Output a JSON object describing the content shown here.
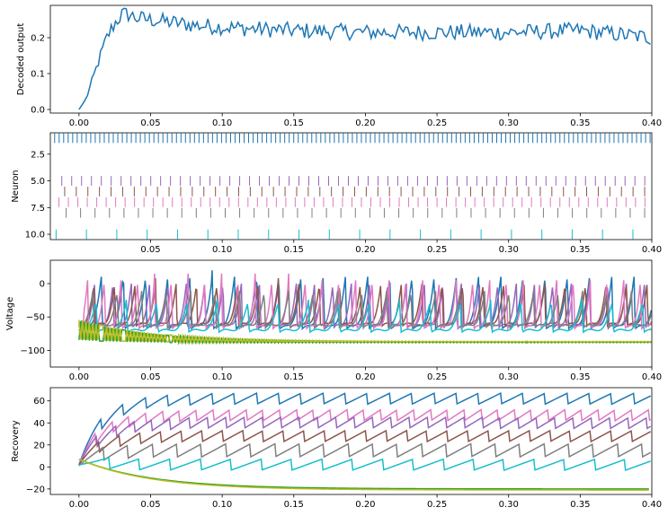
{
  "chart_data": [
    {
      "type": "line",
      "ylabel": "Decoded output",
      "xlim": [
        -0.02,
        0.4
      ],
      "ylim": [
        -0.01,
        0.29
      ],
      "xticks": [
        0.0,
        0.05,
        0.1,
        0.15,
        0.2,
        0.25,
        0.3,
        0.35,
        0.4
      ],
      "xtick_labels": [
        "0.00",
        "0.05",
        "0.10",
        "0.15",
        "0.20",
        "0.25",
        "0.30",
        "0.35",
        "0.40"
      ],
      "yticks": [
        0.0,
        0.1,
        0.2
      ],
      "ytick_labels": [
        "0.0",
        "0.1",
        "0.2"
      ],
      "series": [
        {
          "color": "#1f77b4",
          "x": [
            0.0,
            0.005,
            0.01,
            0.015,
            0.02,
            0.025,
            0.03,
            0.035,
            0.04,
            0.05,
            0.06,
            0.07,
            0.08,
            0.1,
            0.12,
            0.15,
            0.2,
            0.25,
            0.3,
            0.35,
            0.4
          ],
          "y": [
            0.0,
            0.03,
            0.09,
            0.15,
            0.205,
            0.24,
            0.265,
            0.265,
            0.255,
            0.25,
            0.245,
            0.24,
            0.235,
            0.23,
            0.225,
            0.22,
            0.215,
            0.215,
            0.215,
            0.22,
            0.2
          ]
        }
      ]
    },
    {
      "type": "scatter",
      "ylabel": "Neuron",
      "xlim": [
        -0.02,
        0.4
      ],
      "ylim": [
        10.5,
        0.5
      ],
      "xticks": [
        0.05,
        0.1,
        0.15,
        0.2,
        0.25,
        0.3,
        0.35,
        0.4
      ],
      "xtick_labels": [
        "0.05",
        "0.10",
        "0.15",
        "0.20",
        "0.25",
        "0.30",
        "0.35",
        "0.40"
      ],
      "yticks": [
        2.5,
        5.0,
        7.5,
        10.0
      ],
      "ytick_labels": [
        "2.5",
        "5.0",
        "7.5",
        "10.0"
      ],
      "series": [
        {
          "neuron": 1,
          "color": "#1f77b4",
          "start": -0.017,
          "period": 0.00315
        },
        {
          "neuron": 5,
          "color": "#9467bd",
          "start": -0.012,
          "period": 0.0069
        },
        {
          "neuron": 6,
          "color": "#8c564b",
          "start": -0.01,
          "period": 0.0081
        },
        {
          "neuron": 7,
          "color": "#e377c2",
          "start": -0.014,
          "period": 0.0066
        },
        {
          "neuron": 8,
          "color": "#7f7f7f",
          "start": -0.009,
          "period": 0.0101
        },
        {
          "neuron": 10,
          "color": "#17becf",
          "start": -0.016,
          "period": 0.0212
        }
      ]
    },
    {
      "type": "line",
      "ylabel": "Voltage",
      "xlim": [
        -0.02,
        0.4
      ],
      "ylim": [
        -125,
        35
      ],
      "xticks": [
        0.0,
        0.05,
        0.1,
        0.15,
        0.2,
        0.25,
        0.3,
        0.35,
        0.4
      ],
      "xtick_labels": [
        "0.00",
        "0.05",
        "0.10",
        "0.15",
        "0.20",
        "0.25",
        "0.30",
        "0.35",
        "0.40"
      ],
      "yticks": [
        0,
        -50,
        -100
      ],
      "ytick_labels": [
        "0",
        "−50",
        "−100"
      ],
      "series": [
        {
          "color": "#1f77b4",
          "kind": "spiking",
          "period": 0.0155,
          "peak": 20,
          "rest": -70
        },
        {
          "color": "#9467bd",
          "kind": "spiking",
          "period": 0.0128,
          "peak": 10,
          "rest": -68
        },
        {
          "color": "#8c564b",
          "kind": "spiking",
          "period": 0.0143,
          "peak": 8,
          "rest": -66
        },
        {
          "color": "#e377c2",
          "kind": "spiking",
          "period": 0.0117,
          "peak": 15,
          "rest": -70
        },
        {
          "color": "#7f7f7f",
          "kind": "spiking",
          "period": 0.0171,
          "peak": -5,
          "rest": -68
        },
        {
          "color": "#17becf",
          "kind": "spiking",
          "period": 0.0212,
          "peak": -20,
          "rest": -75
        },
        {
          "color": "#2ca02c",
          "kind": "oscillating",
          "settle": -88
        },
        {
          "color": "#bcbd22",
          "kind": "oscillating",
          "settle": -87
        }
      ]
    },
    {
      "type": "line",
      "ylabel": "Recovery",
      "xlim": [
        -0.02,
        0.4
      ],
      "ylim": [
        -25,
        72
      ],
      "xticks": [
        0.0,
        0.05,
        0.1,
        0.15,
        0.2,
        0.25,
        0.3,
        0.35,
        0.4
      ],
      "xtick_labels": [
        "0.00",
        "0.05",
        "0.10",
        "0.15",
        "0.20",
        "0.25",
        "0.30",
        "0.35",
        "0.40"
      ],
      "yticks": [
        -20,
        0,
        20,
        40,
        60
      ],
      "ytick_labels": [
        "−20",
        "0",
        "20",
        "40",
        "60"
      ],
      "series": [
        {
          "color": "#1f77b4",
          "kind": "sawtooth",
          "start": 7,
          "level": 62,
          "amp": 5,
          "period": 0.0155
        },
        {
          "color": "#e377c2",
          "kind": "sawtooth",
          "start": 7,
          "level": 47,
          "amp": 5,
          "period": 0.0117
        },
        {
          "color": "#9467bd",
          "kind": "sawtooth",
          "start": 7,
          "level": 40,
          "amp": 5,
          "period": 0.0128
        },
        {
          "color": "#8c564b",
          "kind": "sawtooth",
          "start": 7,
          "level": 28,
          "amp": 5,
          "period": 0.0143
        },
        {
          "color": "#7f7f7f",
          "kind": "sawtooth",
          "start": 7,
          "level": 15,
          "amp": 6,
          "period": 0.0171
        },
        {
          "color": "#17becf",
          "kind": "sawtooth",
          "start": 7,
          "level": 2,
          "amp": 5,
          "period": 0.0212
        },
        {
          "color": "#2ca02c",
          "kind": "decay",
          "start": 7,
          "level": -20
        },
        {
          "color": "#bcbd22",
          "kind": "decay",
          "start": 7,
          "level": -21
        }
      ]
    }
  ]
}
